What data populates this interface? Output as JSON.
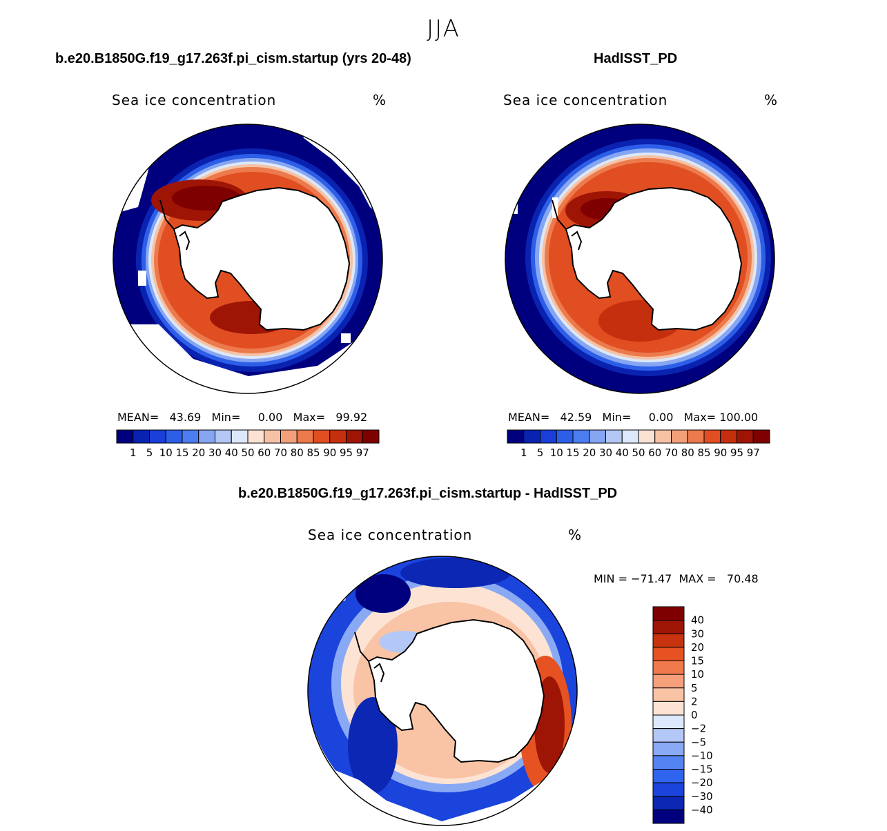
{
  "season": "JJA",
  "panels": [
    {
      "title": "b.e20.B1850G.f19_g17.263f.pi_cism.startup (yrs 20-48)",
      "variable": "Sea ice concentration",
      "units": "%",
      "stats": "MEAN=   43.69   Min=     0.00   Max=   99.92"
    },
    {
      "title": "HadISST_PD",
      "variable": "Sea ice concentration",
      "units": "%",
      "stats": "MEAN=   42.59   Min=     0.00   Max= 100.00"
    },
    {
      "title": "b.e20.B1850G.f19_g17.263f.pi_cism.startup - HadISST_PD",
      "variable": "Sea ice concentration",
      "units": "%",
      "stats": "MIN = −71.47  MAX =   70.48"
    }
  ],
  "colors": {
    "seq": [
      "#00007f",
      "#0a22b0",
      "#1a3fd8",
      "#2d5ee8",
      "#4b7df0",
      "#87a6f2",
      "#b3c8f5",
      "#dde8fa",
      "#fbe2d2",
      "#f6c2a5",
      "#f2a07a",
      "#ec7a4c",
      "#e04e22",
      "#c4300d",
      "#9e1505",
      "#7f0000"
    ],
    "diff": [
      "#00007f",
      "#0b27b3",
      "#1a44dc",
      "#2f64ee",
      "#5483f2",
      "#8aa9f4",
      "#b3c8f7",
      "#dce8fb",
      "#fde3d3",
      "#f9c3a5",
      "#f6a07b",
      "#f07a4c",
      "#e65222",
      "#c7330e",
      "#9e1505",
      "#7f0000"
    ],
    "land": "#ffffff",
    "outline": "#000000"
  },
  "chart_data": [
    {
      "type": "heatmap",
      "projection": "south polar stereographic",
      "title": "b.e20.B1850G.f19_g17.263f.pi_cism.startup (yrs 20-48)",
      "variable": "Sea ice concentration",
      "units": "%",
      "mean": 43.69,
      "min": 0.0,
      "max": 99.92,
      "colorbar_levels": [
        "1",
        "5",
        "10",
        "15",
        "20",
        "30",
        "40",
        "50",
        "60",
        "70",
        "80",
        "85",
        "90",
        "95",
        "97"
      ],
      "colorbar_orientation": "horizontal"
    },
    {
      "type": "heatmap",
      "projection": "south polar stereographic",
      "title": "HadISST_PD",
      "variable": "Sea ice concentration",
      "units": "%",
      "mean": 42.59,
      "min": 0.0,
      "max": 100.0,
      "colorbar_levels": [
        "1",
        "5",
        "10",
        "15",
        "20",
        "30",
        "40",
        "50",
        "60",
        "70",
        "80",
        "85",
        "90",
        "95",
        "97"
      ],
      "colorbar_orientation": "horizontal"
    },
    {
      "type": "heatmap",
      "projection": "south polar stereographic",
      "title": "b.e20.B1850G.f19_g17.263f.pi_cism.startup - HadISST_PD",
      "variable": "Sea ice concentration",
      "units": "%",
      "min": -71.47,
      "max": 70.48,
      "colorbar_levels": [
        "40",
        "30",
        "20",
        "15",
        "10",
        "5",
        "2",
        "0",
        "−2",
        "−5",
        "−10",
        "−15",
        "−20",
        "−30",
        "−40"
      ],
      "colorbar_orientation": "vertical"
    }
  ]
}
